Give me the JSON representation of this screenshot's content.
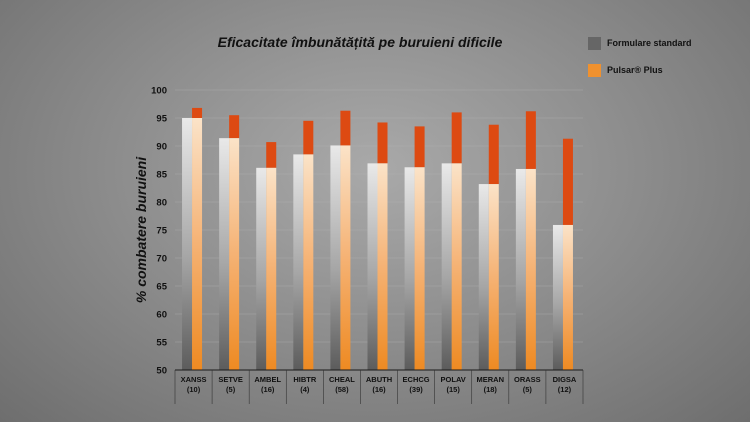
{
  "chart_data": {
    "type": "bar",
    "title": "Eficacitate îmbunătățită pe buruieni dificile",
    "ylabel": "% combatere buruieni",
    "ylim": [
      50,
      100
    ],
    "yticks": [
      50,
      55,
      60,
      65,
      70,
      75,
      80,
      85,
      90,
      95,
      100
    ],
    "categories": [
      "XANSS",
      "SETVE",
      "AMBEL",
      "HIBTR",
      "CHEAL",
      "ABUTH",
      "ECHCG",
      "POLAV",
      "MERAN",
      "ORASS",
      "DIGSA"
    ],
    "sublabels": [
      "(10)",
      "(5)",
      "(16)",
      "(4)",
      "(58)",
      "(16)",
      "(39)",
      "(15)",
      "(18)",
      "(5)",
      "(12)"
    ],
    "series": [
      {
        "name": "Formulare standard",
        "values": [
          95.0,
          91.4,
          86.1,
          88.5,
          90.1,
          86.9,
          86.2,
          86.9,
          83.2,
          85.9,
          75.9
        ]
      },
      {
        "name": "Pulsar® Plus",
        "values": [
          96.8,
          95.5,
          90.7,
          94.5,
          96.3,
          94.2,
          93.5,
          96.0,
          93.8,
          96.2,
          91.3
        ]
      }
    ],
    "legend_position": "top-right",
    "colors": {
      "standard": "#666666",
      "pulsar": "#f0912e",
      "improvement": "#dd4a12"
    }
  }
}
